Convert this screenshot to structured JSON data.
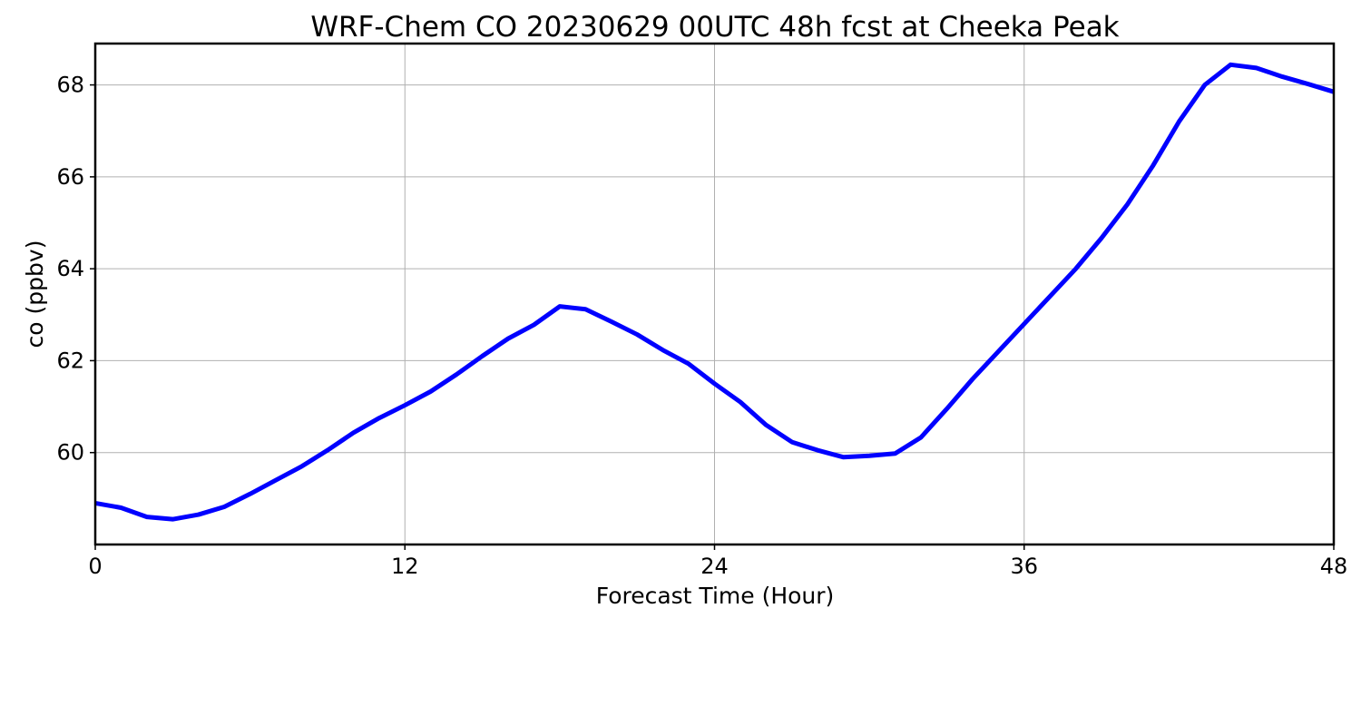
{
  "chart_data": {
    "type": "line",
    "title": "WRF-Chem CO  20230629 00UTC 48h fcst at Cheeka Peak",
    "xlabel": "Forecast Time (Hour)",
    "ylabel": "co  (ppbv)",
    "xlim": [
      0,
      48
    ],
    "ylim": [
      58.0,
      68.9
    ],
    "xticks": [
      0,
      12,
      24,
      36,
      48
    ],
    "yticks": [
      60,
      62,
      64,
      66,
      68
    ],
    "grid": true,
    "line_color": "#0000ff",
    "series": [
      {
        "x": [
          0,
          1,
          2,
          3,
          4,
          5,
          6,
          7,
          8,
          9,
          10,
          11,
          12,
          13,
          14,
          15,
          16,
          17,
          18,
          19,
          20,
          21,
          22,
          23,
          24,
          25,
          26,
          27,
          28,
          29,
          30,
          31,
          32,
          33,
          34,
          35,
          36,
          37,
          38,
          39,
          40,
          41,
          42,
          43,
          44,
          45,
          46,
          47,
          48
        ],
        "values": [
          58.9,
          58.8,
          58.6,
          58.55,
          58.65,
          58.82,
          59.1,
          59.4,
          59.7,
          60.05,
          60.43,
          60.75,
          61.03,
          61.33,
          61.7,
          62.1,
          62.48,
          62.78,
          63.18,
          63.12,
          62.85,
          62.57,
          62.23,
          61.93,
          61.5,
          61.1,
          60.6,
          60.23,
          60.05,
          59.9,
          59.93,
          59.98,
          60.33,
          60.95,
          61.6,
          62.2,
          62.8,
          63.4,
          64.0,
          64.67,
          65.4,
          66.25,
          67.2,
          68.0,
          68.44,
          68.37,
          68.18,
          68.02,
          67.85
        ]
      }
    ]
  }
}
